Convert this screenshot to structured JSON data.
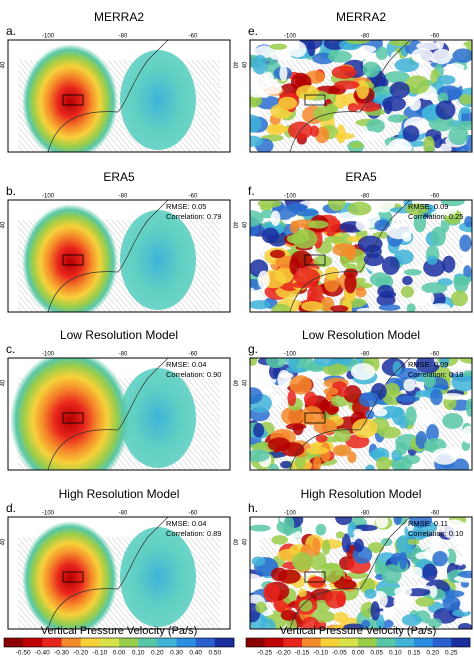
{
  "panels": [
    {
      "letter": "a.",
      "title": "MERRA2",
      "lon_ticks": [
        "-100",
        "-80",
        "-60"
      ],
      "lat_tick": "40"
    },
    {
      "letter": "e.",
      "title": "MERRA2",
      "lon_ticks": [
        "-100",
        "-80",
        "-60"
      ],
      "lat_tick": "40"
    },
    {
      "letter": "b.",
      "title": "ERA5",
      "lon_ticks": [
        "-100",
        "-80",
        "-60"
      ],
      "lat_tick": "40",
      "rmse": "RMSE: 0.05",
      "correlation": "Correlation: 0.79"
    },
    {
      "letter": "f.",
      "title": "ERA5",
      "lon_ticks": [
        "-100",
        "-80",
        "-60"
      ],
      "lat_tick": "40",
      "rmse": "RMSE: 0.09",
      "correlation": "Correlation: 0.25"
    },
    {
      "letter": "c.",
      "title": "Low Resolution Model",
      "lon_ticks": [
        "-100",
        "-80",
        "-60"
      ],
      "lat_tick": "40",
      "rmse": "RMSE: 0.04",
      "correlation": "Correlation: 0.90"
    },
    {
      "letter": "g.",
      "title": "Low Resolution Model",
      "lon_ticks": [
        "-100",
        "-80",
        "-60"
      ],
      "lat_tick": "40",
      "rmse": "RMSE: 0.09",
      "correlation": "Correlation: 0.18"
    },
    {
      "letter": "d.",
      "title": "High Resolution Model",
      "lon_ticks": [
        "-100",
        "-80",
        "-60"
      ],
      "lat_tick": "40",
      "rmse": "RMSE: 0.04",
      "correlation": "Correlation: 0.89"
    },
    {
      "letter": "h.",
      "title": "High Resolution Model",
      "lon_ticks": [
        "-100",
        "-80",
        "-60"
      ],
      "lat_tick": "40",
      "rmse": "RMSE: 0.11",
      "correlation": "Correlation: 0.10"
    }
  ],
  "colorbars": [
    {
      "title": "Vertical Pressure Velocity (Pa/s)",
      "ticks": [
        "-0.50",
        "-0.40",
        "-0.30",
        "-0.20",
        "-0.10",
        "0.00",
        "0.10",
        "0.20",
        "0.30",
        "0.40",
        "0.50"
      ]
    },
    {
      "title": "Vertical Pressure Velocity (Pa/s)",
      "ticks": [
        "-0.25",
        "-0.20",
        "-0.15",
        "-0.10",
        "-0.05",
        "0.00",
        "0.05",
        "0.10",
        "0.15",
        "0.20",
        "0.25"
      ]
    }
  ]
}
